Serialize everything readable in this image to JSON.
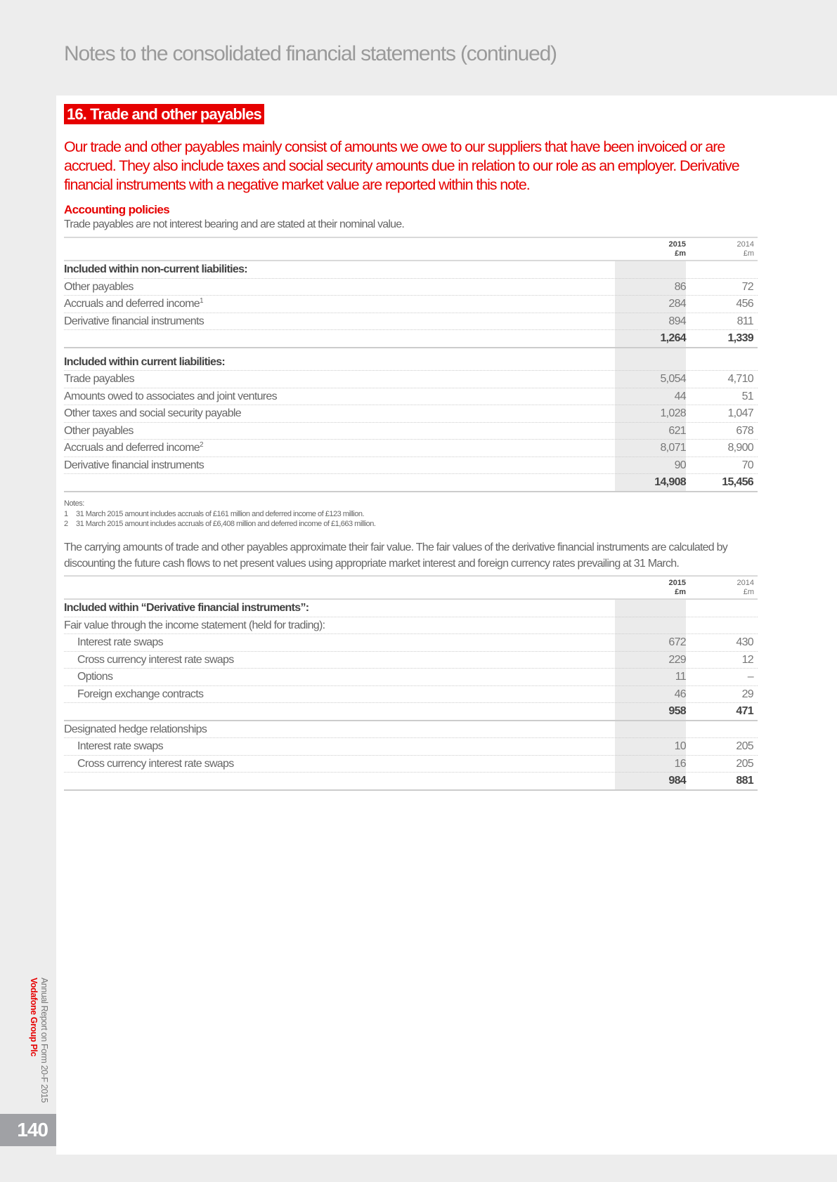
{
  "header": {
    "title": "Notes to the consolidated financial statements (continued)"
  },
  "section": {
    "heading": "16. Trade and other payables",
    "intro": "Our trade and other payables mainly consist of amounts we owe to our suppliers that have been invoiced or are accrued. They also include taxes and social security amounts due in relation to our role as an employer. Derivative financial instruments with a negative market value are reported within this note.",
    "policies_heading": "Accounting policies",
    "policies_text": "Trade payables are not interest bearing and are stated at their nominal value."
  },
  "table1": {
    "columns": [
      {
        "year": "2015",
        "unit": "£m"
      },
      {
        "year": "2014",
        "unit": "£m"
      }
    ],
    "rows": [
      {
        "type": "sec",
        "label": "Included within non-current liabilities:"
      },
      {
        "label": "Other payables",
        "v2015": "86",
        "v2014": "72"
      },
      {
        "label": "Accruals and deferred income",
        "sup": "1",
        "v2015": "284",
        "v2014": "456"
      },
      {
        "label": "Derivative financial instruments",
        "v2015": "894",
        "v2014": "811"
      },
      {
        "type": "tot",
        "label": "",
        "v2015": "1,264",
        "v2014": "1,339"
      },
      {
        "type": "sec gap",
        "label": "Included within current liabilities:"
      },
      {
        "label": "Trade payables",
        "v2015": "5,054",
        "v2014": "4,710"
      },
      {
        "label": "Amounts owed to associates and joint ventures",
        "v2015": "44",
        "v2014": "51"
      },
      {
        "label": "Other taxes and social security payable",
        "v2015": "1,028",
        "v2014": "1,047"
      },
      {
        "label": "Other payables",
        "v2015": "621",
        "v2014": "678"
      },
      {
        "label": "Accruals and deferred income",
        "sup": "2",
        "v2015": "8,071",
        "v2014": "8,900"
      },
      {
        "label": "Derivative financial instruments",
        "v2015": "90",
        "v2014": "70"
      },
      {
        "type": "tot",
        "label": "",
        "v2015": "14,908",
        "v2014": "15,456"
      }
    ]
  },
  "notes": {
    "title": "Notes:",
    "items": [
      {
        "num": "1",
        "text": "31 March 2015 amount includes accruals of £161 million and deferred income of £123 million."
      },
      {
        "num": "2",
        "text": "31 March 2015 amount includes accruals of £6,408 million and deferred income of £1,663 million."
      }
    ]
  },
  "fair_value_text": "The carrying amounts of trade and other payables approximate their fair value. The fair values of the derivative financial instruments are calculated by discounting the future cash flows to net present values using appropriate market interest and foreign currency rates prevailing at 31 March.",
  "table2": {
    "columns": [
      {
        "year": "2015",
        "unit": "£m"
      },
      {
        "year": "2014",
        "unit": "£m"
      }
    ],
    "rows": [
      {
        "type": "sec",
        "label": "Included within “Derivative financial instruments”:"
      },
      {
        "label": "Fair value through the income statement (held for trading):"
      },
      {
        "type": "ind",
        "label": "Interest rate swaps",
        "v2015": "672",
        "v2014": "430"
      },
      {
        "type": "ind",
        "label": "Cross currency interest rate swaps",
        "v2015": "229",
        "v2014": "12"
      },
      {
        "type": "ind",
        "label": "Options",
        "v2015": "11",
        "v2014": "–"
      },
      {
        "type": "ind",
        "label": "Foreign exchange contracts",
        "v2015": "46",
        "v2014": "29"
      },
      {
        "type": "tot",
        "label": "",
        "v2015": "958",
        "v2014": "471"
      },
      {
        "label": "Designated hedge relationships"
      },
      {
        "type": "ind",
        "label": "Interest rate swaps",
        "v2015": "10",
        "v2014": "205"
      },
      {
        "type": "ind",
        "label": "Cross currency interest rate swaps",
        "v2015": "16",
        "v2014": "205"
      },
      {
        "type": "tot",
        "label": "",
        "v2015": "984",
        "v2014": "881"
      }
    ]
  },
  "sidebar": {
    "brand": "Vodafone Group Plc",
    "report": "Annual Report on Form 20-F 2015"
  },
  "page_number": "140",
  "colors": {
    "accent": "#e60000",
    "page_number_bg": "#a0a1a5"
  }
}
